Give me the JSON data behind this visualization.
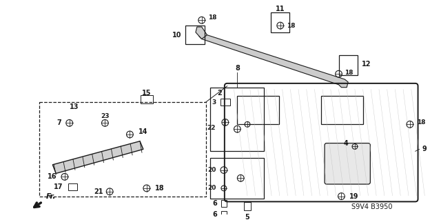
{
  "bg_color": "#ffffff",
  "line_color": "#1a1a1a",
  "part_code": "S9V4 B3950",
  "fig_w": 6.4,
  "fig_h": 3.19,
  "dpi": 100
}
